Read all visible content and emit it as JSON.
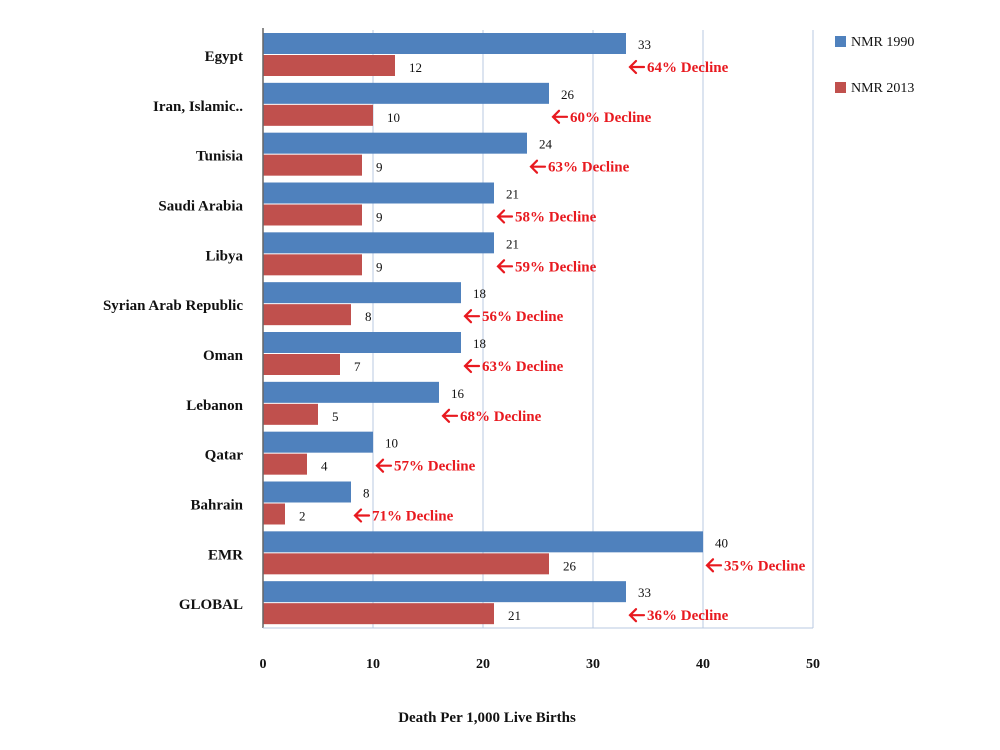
{
  "chart_data": {
    "type": "bar",
    "orientation": "horizontal",
    "categories": [
      "Egypt",
      "Iran, Islamic..",
      "Tunisia",
      "Saudi Arabia",
      "Libya",
      "Syrian Arab Republic",
      "Oman",
      "Lebanon",
      "Qatar",
      "Bahrain",
      "EMR",
      "GLOBAL"
    ],
    "series": [
      {
        "name": "NMR 1990",
        "color": "#4f81bd",
        "values": [
          33,
          26,
          24,
          21,
          21,
          18,
          18,
          16,
          10,
          8,
          40,
          33
        ]
      },
      {
        "name": "NMR 2013",
        "color": "#c0504d",
        "values": [
          12,
          10,
          9,
          9,
          9,
          8,
          7,
          5,
          4,
          2,
          26,
          21
        ]
      }
    ],
    "annotations": [
      "64% Decline",
      "60% Decline",
      "63% Decline",
      "58% Decline",
      "59% Decline",
      "56% Decline",
      "63% Decline",
      "68% Decline",
      "57% Decline",
      "71% Decline",
      "35% Decline",
      "36% Decline"
    ],
    "annotation_color": "#e8191f",
    "xlabel": "Death Per 1,000 Live Births",
    "xlim": [
      0,
      50
    ],
    "xticks": [
      "0",
      "10",
      "20",
      "30",
      "40",
      "50"
    ],
    "grid": true,
    "legend_position": "top-right"
  }
}
